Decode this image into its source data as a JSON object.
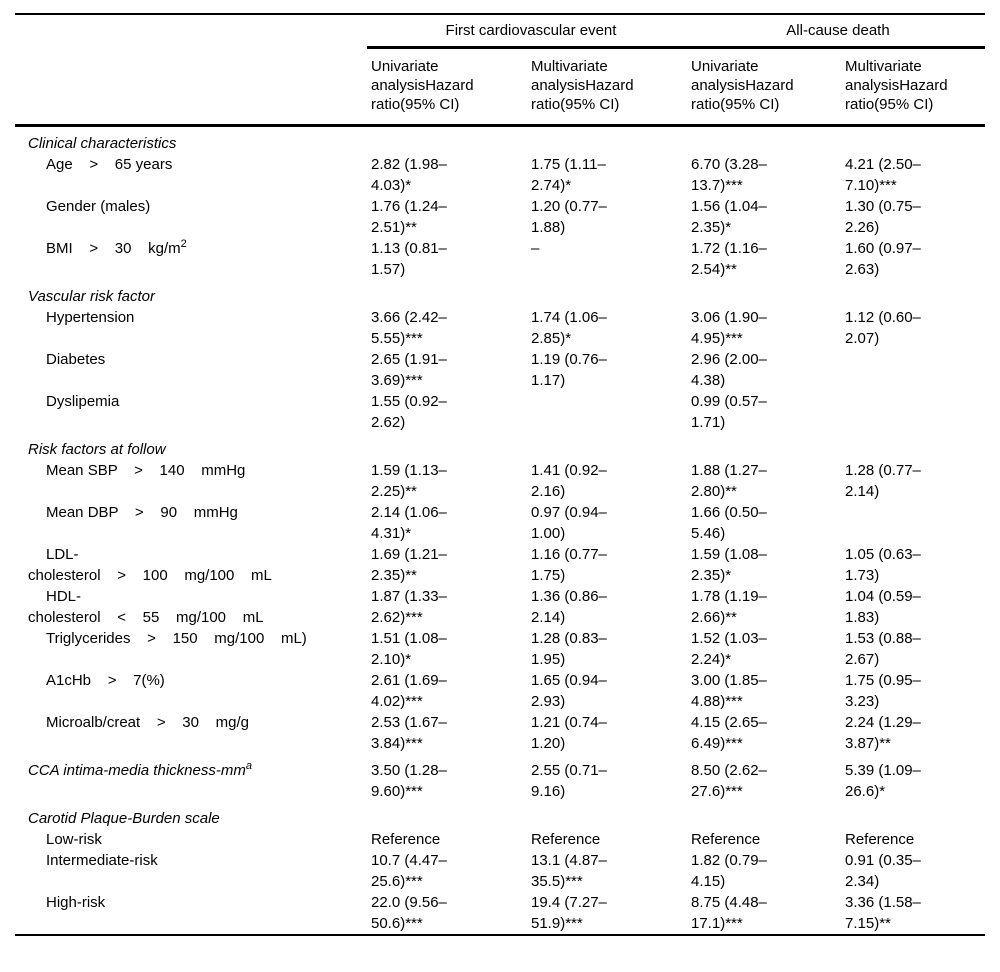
{
  "table": {
    "spanners": [
      {
        "label": "First cardiovascular event"
      },
      {
        "label": "All-cause death"
      }
    ],
    "columns": [
      "Univariate\nanalysisHazard\nratio(95% CI)",
      "Multivariate\nanalysisHazard\nratio(95% CI)",
      "Univariate\nanalysisHazard\nratio(95% CI)",
      "Multivariate\nanalysisHazard\nratio(95% CI)"
    ],
    "rows": [
      {
        "type": "section",
        "label": "Clinical characteristics",
        "cells": [
          "",
          "",
          "",
          ""
        ]
      },
      {
        "type": "item",
        "label": "Age    >    65 years",
        "cells": [
          "2.82 (1.98–\n4.03)*",
          "1.75 (1.11–\n2.74)*",
          "6.70 (3.28–\n13.7)***",
          "4.21 (2.50–\n7.10)***"
        ]
      },
      {
        "type": "item",
        "label": "Gender (males)",
        "cells": [
          "1.76 (1.24–\n2.51)**",
          "1.20 (0.77–\n1.88)",
          "1.56 (1.04–\n2.35)*",
          "1.30 (0.75–\n2.26)"
        ]
      },
      {
        "type": "item",
        "label": "BMI    >    30    kg/m",
        "label_sup": "2",
        "cells": [
          "1.13 (0.81–\n1.57)",
          "–",
          "1.72 (1.16–\n2.54)**",
          "1.60 (0.97–\n2.63)"
        ]
      },
      {
        "type": "section",
        "label": "Vascular risk factor",
        "cells": [
          "",
          "",
          "",
          ""
        ]
      },
      {
        "type": "item",
        "label": "Hypertension",
        "cells": [
          "3.66 (2.42–\n5.55)***",
          "1.74 (1.06–\n2.85)*",
          "3.06 (1.90–\n4.95)***",
          "1.12 (0.60–\n2.07)"
        ]
      },
      {
        "type": "item",
        "label": "Diabetes",
        "cells": [
          "2.65 (1.91–\n3.69)***",
          "1.19 (0.76–\n1.17)",
          "2.96 (2.00–\n4.38)",
          ""
        ]
      },
      {
        "type": "item",
        "label": "Dyslipemia",
        "cells": [
          "1.55 (0.92–\n2.62)",
          "",
          "0.99 (0.57–\n1.71)",
          ""
        ]
      },
      {
        "type": "section",
        "label": "Risk factors at follow",
        "cells": [
          "",
          "",
          "",
          ""
        ]
      },
      {
        "type": "item",
        "label": "Mean SBP    >    140    mmHg",
        "cells": [
          "1.59 (1.13–\n2.25)**",
          "1.41 (0.92–\n2.16)",
          "1.88 (1.27–\n2.80)**",
          "1.28 (0.77–\n2.14)"
        ]
      },
      {
        "type": "item",
        "label": "Mean DBP    >    90    mmHg",
        "cells": [
          "2.14 (1.06–\n4.31)*",
          "0.97 (0.94–\n1.00)",
          "1.66 (0.50–\n5.46)",
          ""
        ]
      },
      {
        "type": "item",
        "label": "LDL-\ncholesterol    >    100    mg/100    mL",
        "cells": [
          "1.69 (1.21–\n2.35)**",
          "1.16 (0.77–\n1.75)",
          "1.59 (1.08–\n2.35)*",
          "1.05 (0.63–\n1.73)"
        ]
      },
      {
        "type": "item",
        "label": "HDL-\ncholesterol    <    55    mg/100    mL",
        "cells": [
          "1.87 (1.33–\n2.62)***",
          "1.36 (0.86–\n2.14)",
          "1.78 (1.19–\n2.66)**",
          "1.04 (0.59–\n1.83)"
        ]
      },
      {
        "type": "item",
        "label": "Triglycerides    >    150    mg/100    mL)",
        "cells": [
          "1.51 (1.08–\n2.10)*",
          "1.28 (0.83–\n1.95)",
          "1.52 (1.03–\n2.24)*",
          "1.53 (0.88–\n2.67)"
        ]
      },
      {
        "type": "item",
        "label": "A1cHb    >    7(%)",
        "cells": [
          "2.61 (1.69–\n4.02)***",
          "1.65 (0.94–\n2.93)",
          "3.00 (1.85–\n4.88)***",
          "1.75 (0.95–\n3.23)"
        ]
      },
      {
        "type": "item",
        "label": "Microalb/creat    >    30    mg/g",
        "cells": [
          "2.53 (1.67–\n3.84)***",
          "1.21 (0.74–\n1.20)",
          "4.15 (2.65–\n6.49)***",
          "2.24 (1.29–\n3.87)**"
        ]
      },
      {
        "type": "section-data",
        "label": "CCA intima-media thickness-mm",
        "label_sup": "a",
        "cells": [
          "3.50 (1.28–\n9.60)***",
          "2.55 (0.71–\n9.16)",
          "8.50 (2.62–\n27.6)***",
          "5.39 (1.09–\n26.6)*"
        ]
      },
      {
        "type": "section",
        "label": "Carotid Plaque-Burden scale",
        "cells": [
          "",
          "",
          "",
          ""
        ]
      },
      {
        "type": "item",
        "label": "Low-risk",
        "cells": [
          "Reference",
          "Reference",
          "Reference",
          "Reference"
        ]
      },
      {
        "type": "item",
        "label": "Intermediate-risk",
        "cells": [
          "10.7 (4.47–\n25.6)***",
          "13.1 (4.87–\n35.5)***",
          "1.82 (0.79–\n4.15)",
          "0.91 (0.35–\n2.34)"
        ]
      },
      {
        "type": "item",
        "label": "High-risk",
        "cells": [
          "22.0 (9.56–\n50.6)***",
          "19.4 (7.27–\n51.9)***",
          "8.75 (4.48–\n17.1)***",
          "3.36 (1.58–\n7.15)**"
        ]
      }
    ]
  }
}
